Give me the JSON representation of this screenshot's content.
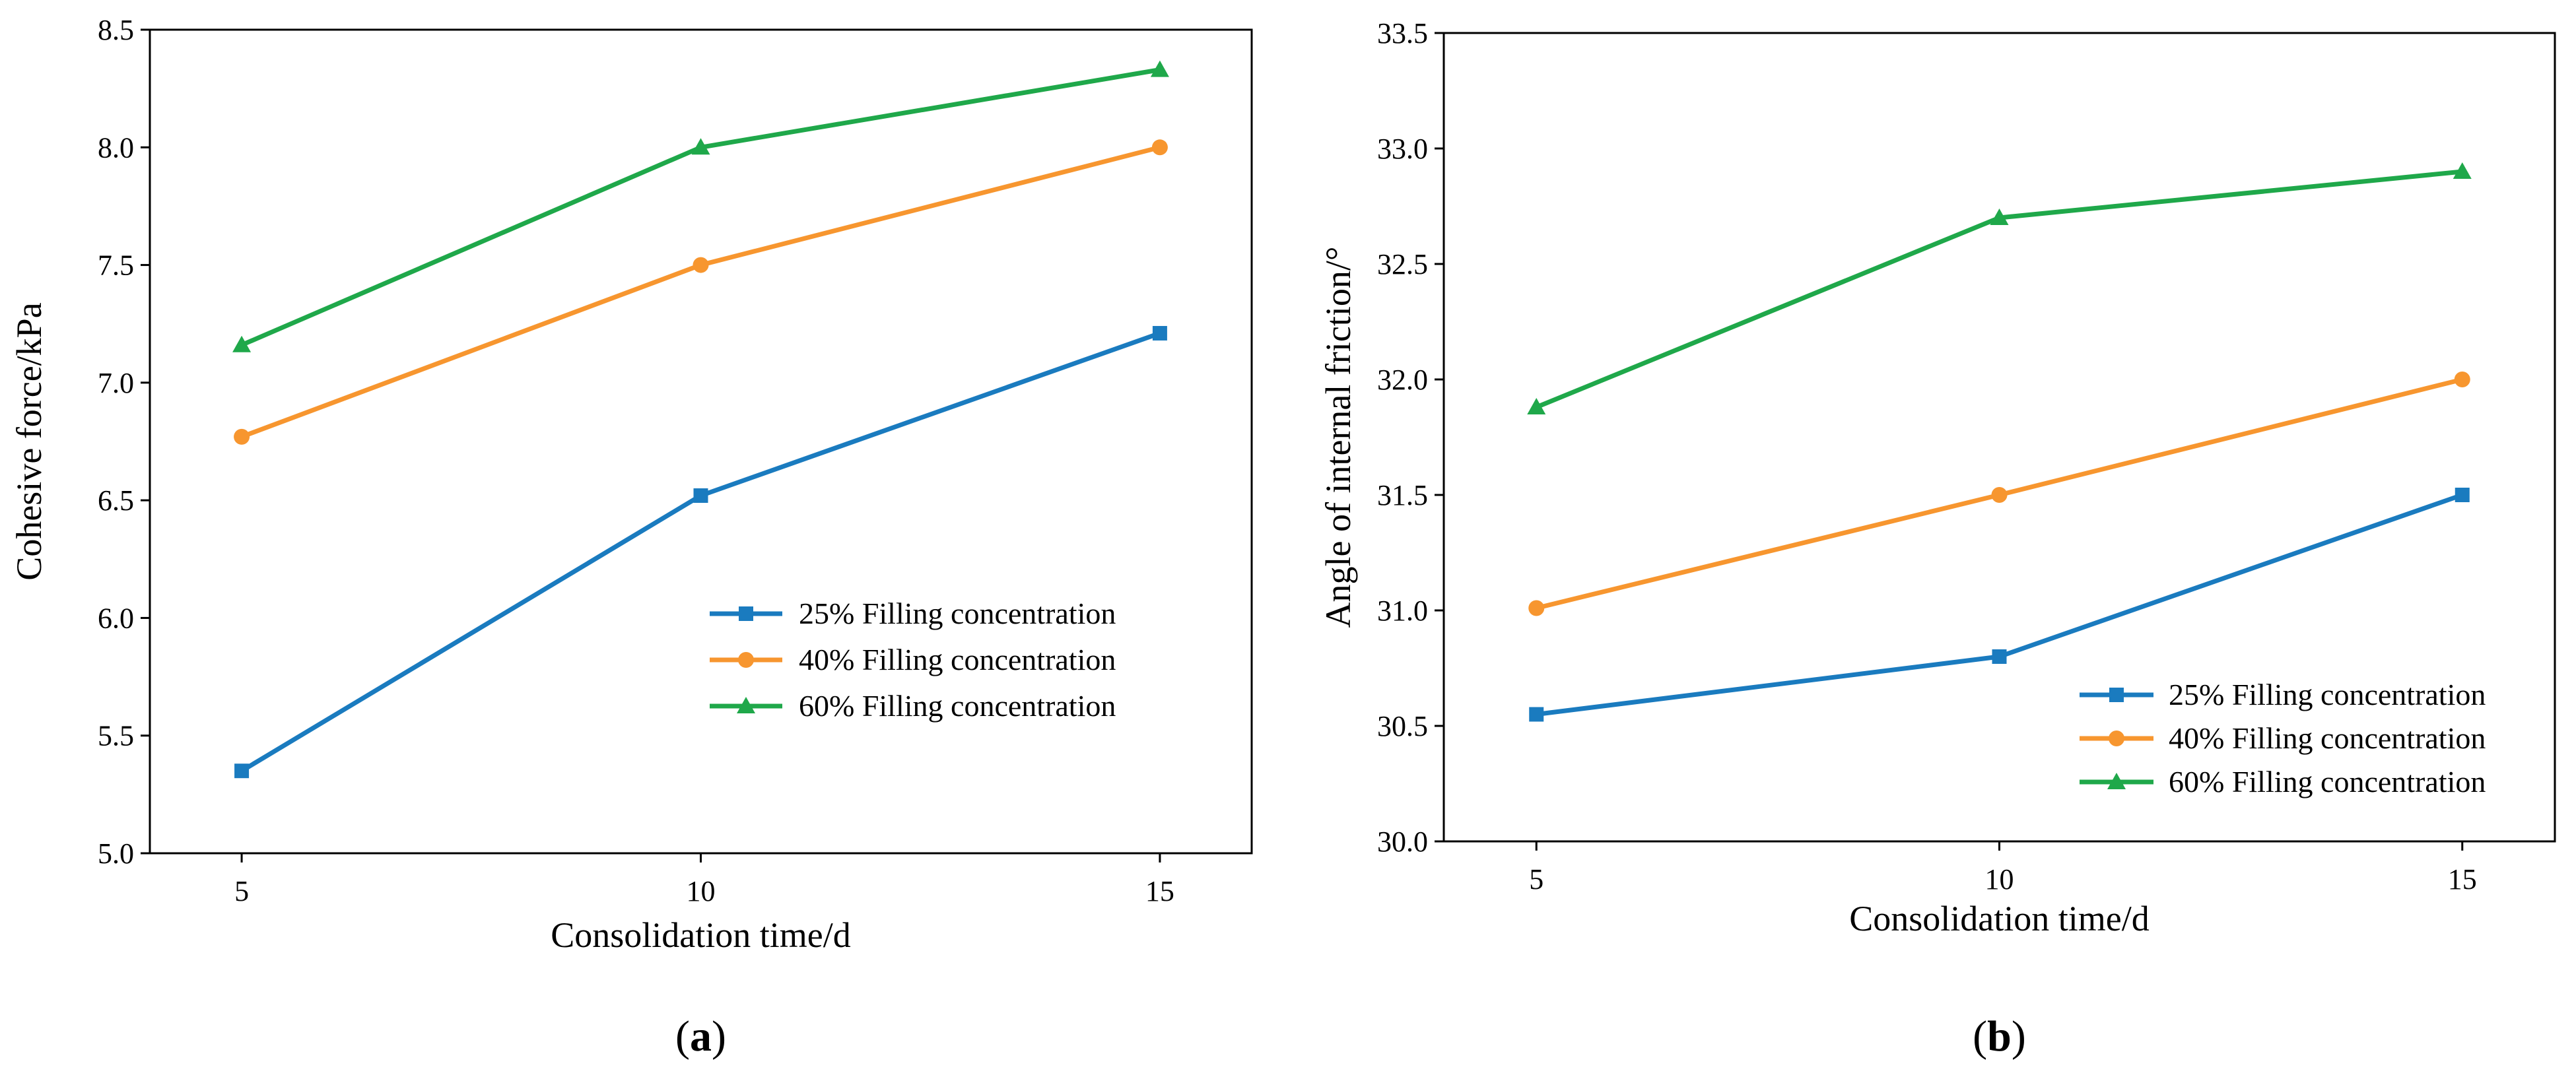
{
  "colors": {
    "series_25": "#1a7bbf",
    "series_40": "#f7962f",
    "series_60": "#1fa84a",
    "axis": "#000000"
  },
  "chart_data": [
    {
      "type": "line",
      "panel": "a",
      "panel_label": {
        "open": "(",
        "letter": "a",
        "close": ")"
      },
      "xlabel": "Consolidation time/d",
      "ylabel": "Cohesive force/kPa",
      "x": [
        5,
        10,
        15
      ],
      "xticks": [
        "5",
        "10",
        "15"
      ],
      "xlim": [
        4,
        16
      ],
      "ylim": [
        5.0,
        8.5
      ],
      "yticks": [
        "5.0",
        "5.5",
        "6.0",
        "6.5",
        "7.0",
        "7.5",
        "8.0",
        "8.5"
      ],
      "grid": false,
      "legend_position": "lower-right",
      "series": [
        {
          "name": "25% Filling concentration",
          "marker": "square",
          "color_key": "series_25",
          "values": [
            5.35,
            6.52,
            7.21
          ]
        },
        {
          "name": "40% Filling concentration",
          "marker": "circle",
          "color_key": "series_40",
          "values": [
            6.77,
            7.5,
            8.0
          ]
        },
        {
          "name": "60% Filling concentration",
          "marker": "triangle",
          "color_key": "series_60",
          "values": [
            7.16,
            8.0,
            8.33
          ]
        }
      ]
    },
    {
      "type": "line",
      "panel": "b",
      "panel_label": {
        "open": "(",
        "letter": "b",
        "close": ")"
      },
      "xlabel": "Consolidation time/d",
      "ylabel": "Angle of internal friction/°",
      "x": [
        5,
        10,
        15
      ],
      "xticks": [
        "5",
        "10",
        "15"
      ],
      "xlim": [
        4,
        16
      ],
      "ylim": [
        30.0,
        33.5
      ],
      "yticks": [
        "30.0",
        "30.5",
        "31.0",
        "31.5",
        "32.0",
        "32.5",
        "33.0",
        "33.5"
      ],
      "grid": false,
      "legend_position": "lower-right",
      "series": [
        {
          "name": "25% Filling concentration",
          "marker": "square",
          "color_key": "series_25",
          "values": [
            30.55,
            30.8,
            31.5
          ]
        },
        {
          "name": "40% Filling concentration",
          "marker": "circle",
          "color_key": "series_40",
          "values": [
            31.01,
            31.5,
            32.0
          ]
        },
        {
          "name": "60% Filling concentration",
          "marker": "triangle",
          "color_key": "series_60",
          "values": [
            31.88,
            32.7,
            32.9
          ]
        }
      ]
    }
  ]
}
